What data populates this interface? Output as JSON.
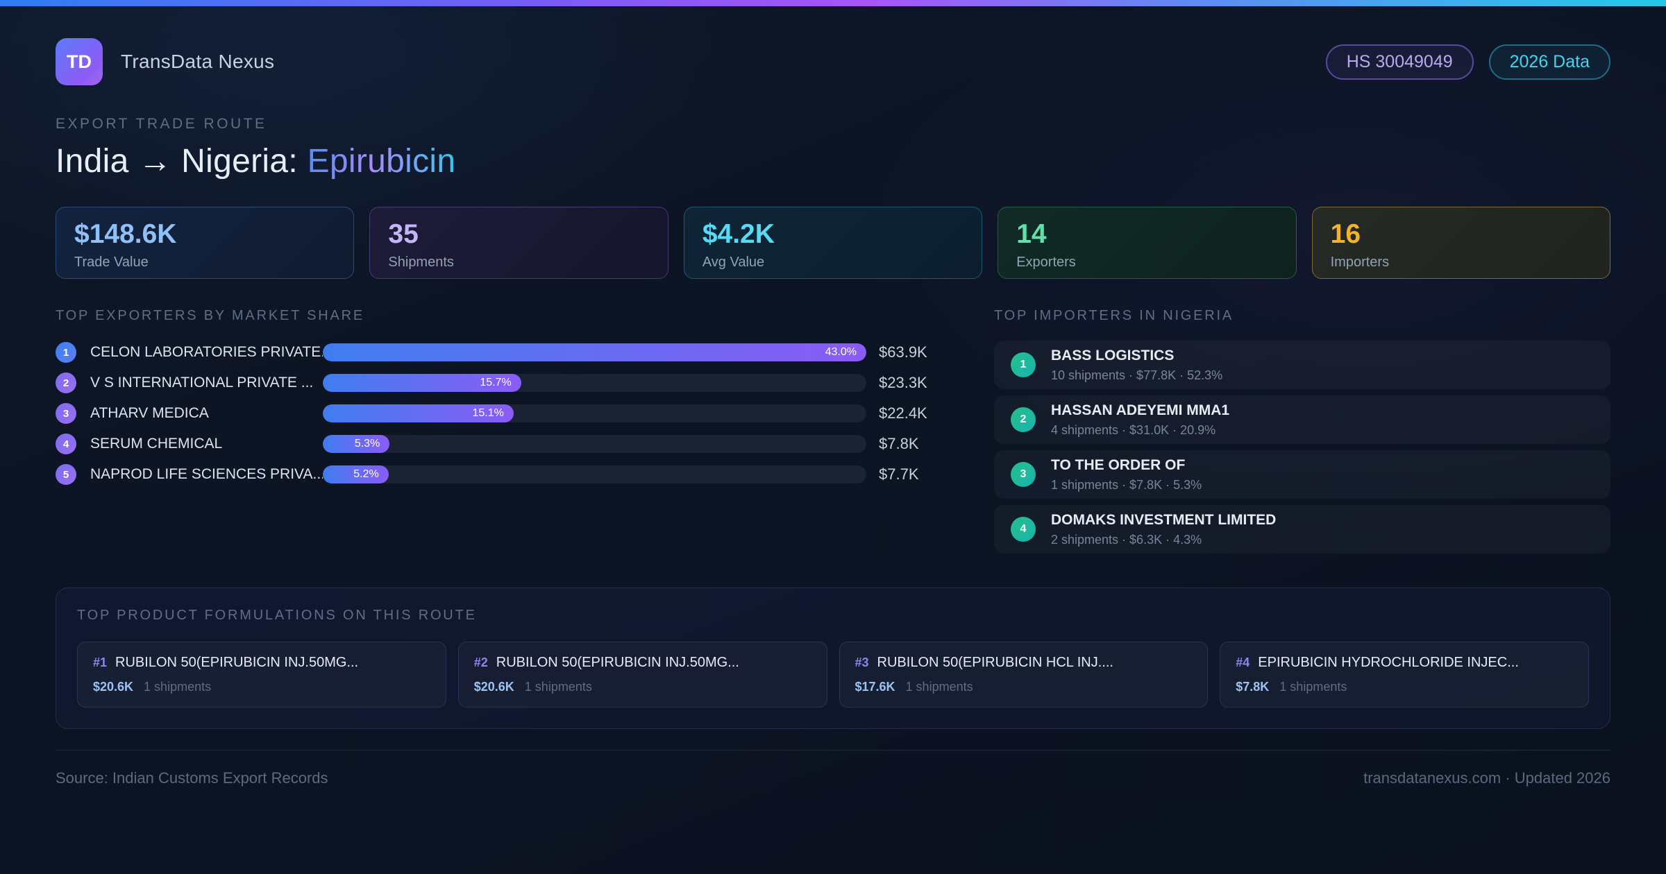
{
  "accent_colors": {
    "topbar_gradient": [
      "#2e7df6",
      "#a855f7",
      "#25c9e8"
    ],
    "bar_gradient": [
      "#3f7df0",
      "#8b5cf6"
    ],
    "importer_badge_gradient": [
      "#25c08b",
      "#18b3ae"
    ],
    "stat_value_colors": [
      "#8fc1f8",
      "#c3b5f8",
      "#55dcf4",
      "#5fe2a9",
      "#f1b32b"
    ]
  },
  "header": {
    "logo_text": "TD",
    "app_name": "TransData Nexus",
    "hs_badge": "HS 30049049",
    "year_badge": "2026 Data"
  },
  "hero": {
    "eyebrow": "EXPORT TRADE ROUTE",
    "title_main": "India → Nigeria: ",
    "title_accent": "Epirubicin"
  },
  "stats": [
    {
      "value": "$148.6K",
      "label": "Trade Value"
    },
    {
      "value": "35",
      "label": "Shipments"
    },
    {
      "value": "$4.2K",
      "label": "Avg Value"
    },
    {
      "value": "14",
      "label": "Exporters"
    },
    {
      "value": "16",
      "label": "Importers"
    }
  ],
  "exporters": {
    "section_title": "TOP EXPORTERS BY MARKET SHARE",
    "items": [
      {
        "rank": "1",
        "name": "CELON LABORATORIES PRIVATE...",
        "share_pct": "43.0%",
        "bar_width_pct": 100,
        "value": "$63.9K"
      },
      {
        "rank": "2",
        "name": "V S INTERNATIONAL PRIVATE ...",
        "share_pct": "15.7%",
        "bar_width_pct": 36.5,
        "value": "$23.3K"
      },
      {
        "rank": "3",
        "name": "ATHARV MEDICA",
        "share_pct": "15.1%",
        "bar_width_pct": 35.1,
        "value": "$22.4K"
      },
      {
        "rank": "4",
        "name": "SERUM CHEMICAL",
        "share_pct": "5.3%",
        "bar_width_pct": 12.3,
        "value": "$7.8K"
      },
      {
        "rank": "5",
        "name": "NAPROD LIFE SCIENCES PRIVA...",
        "share_pct": "5.2%",
        "bar_width_pct": 12.1,
        "value": "$7.7K"
      }
    ]
  },
  "importers": {
    "section_title": "TOP IMPORTERS IN NIGERIA",
    "items": [
      {
        "rank": "1",
        "name": "BASS LOGISTICS",
        "meta": "10 shipments · $77.8K · 52.3%"
      },
      {
        "rank": "2",
        "name": "HASSAN ADEYEMI MMA1",
        "meta": "4 shipments · $31.0K · 20.9%"
      },
      {
        "rank": "3",
        "name": "TO THE ORDER OF",
        "meta": "1 shipments · $7.8K · 5.3%"
      },
      {
        "rank": "4",
        "name": "DOMAKS INVESTMENT LIMITED",
        "meta": "2 shipments · $6.3K · 4.3%"
      }
    ]
  },
  "products": {
    "section_title": "TOP PRODUCT FORMULATIONS ON THIS ROUTE",
    "items": [
      {
        "rank": "#1",
        "name": "RUBILON 50(EPIRUBICIN INJ.50MG...",
        "value": "$20.6K",
        "shipments": "1 shipments"
      },
      {
        "rank": "#2",
        "name": "RUBILON 50(EPIRUBICIN INJ.50MG...",
        "value": "$20.6K",
        "shipments": "1 shipments"
      },
      {
        "rank": "#3",
        "name": "RUBILON 50(EPIRUBICIN HCL INJ....",
        "value": "$17.6K",
        "shipments": "1 shipments"
      },
      {
        "rank": "#4",
        "name": "EPIRUBICIN HYDROCHLORIDE INJEC...",
        "value": "$7.8K",
        "shipments": "1 shipments"
      }
    ]
  },
  "footer": {
    "source": "Source: Indian Customs Export Records",
    "site_note": "transdatanexus.com · Updated 2026"
  }
}
